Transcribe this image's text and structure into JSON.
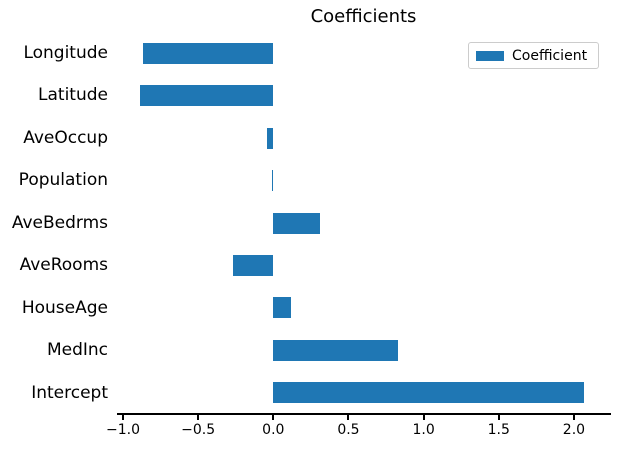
{
  "title": "Coefficients",
  "legend": {
    "label": "Coefficient",
    "position": "upper right",
    "swatch_color": "#1f77b4"
  },
  "colors": {
    "bar": "#1f77b4",
    "axis": "#000000",
    "text": "#000000",
    "legend_border": "#cccccc",
    "background": "#ffffff"
  },
  "chart_data": {
    "type": "bar",
    "orientation": "horizontal",
    "title": "Coefficients",
    "series_name": "Coefficient",
    "categories": [
      "Longitude",
      "Latitude",
      "AveOccup",
      "Population",
      "AveBedrms",
      "AveRooms",
      "HouseAge",
      "MedInc",
      "Intercept"
    ],
    "values": [
      -0.87,
      -0.89,
      -0.04,
      -0.005,
      0.31,
      -0.27,
      0.12,
      0.83,
      2.07
    ],
    "xlim": [
      -1.04,
      2.24
    ],
    "x_ticks": [
      -1.0,
      -0.5,
      0.0,
      0.5,
      1.0,
      1.5,
      2.0
    ],
    "x_tick_labels": [
      "−1.0",
      "−0.5",
      "0.0",
      "0.5",
      "1.0",
      "1.5",
      "2.0"
    ],
    "xlabel": "",
    "ylabel": "",
    "grid": false,
    "legend_position": "upper right",
    "bar_color": "#1f77b4"
  }
}
